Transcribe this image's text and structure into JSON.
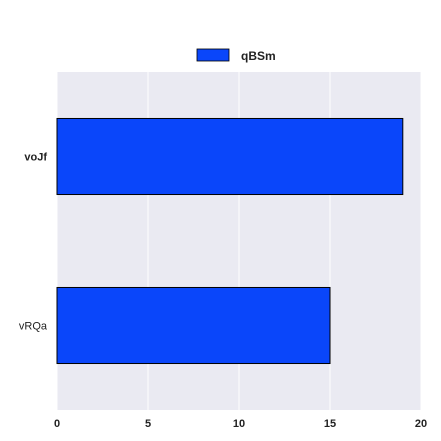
{
  "chart_data": {
    "type": "bar",
    "orientation": "horizontal",
    "categories": [
      "vRQa",
      "voJf"
    ],
    "category_label_bold": [
      false,
      true
    ],
    "series": [
      {
        "name": "qBSm",
        "values": [
          15,
          19
        ],
        "color": "#0a46fa"
      }
    ],
    "xlim": [
      0,
      20
    ],
    "xticks": [
      0,
      5,
      10,
      15,
      20
    ],
    "grid": true,
    "legend": "top-center",
    "background": "#eaeaf2",
    "grid_color": "#ffffff",
    "bar_edge_color": "#000000"
  }
}
